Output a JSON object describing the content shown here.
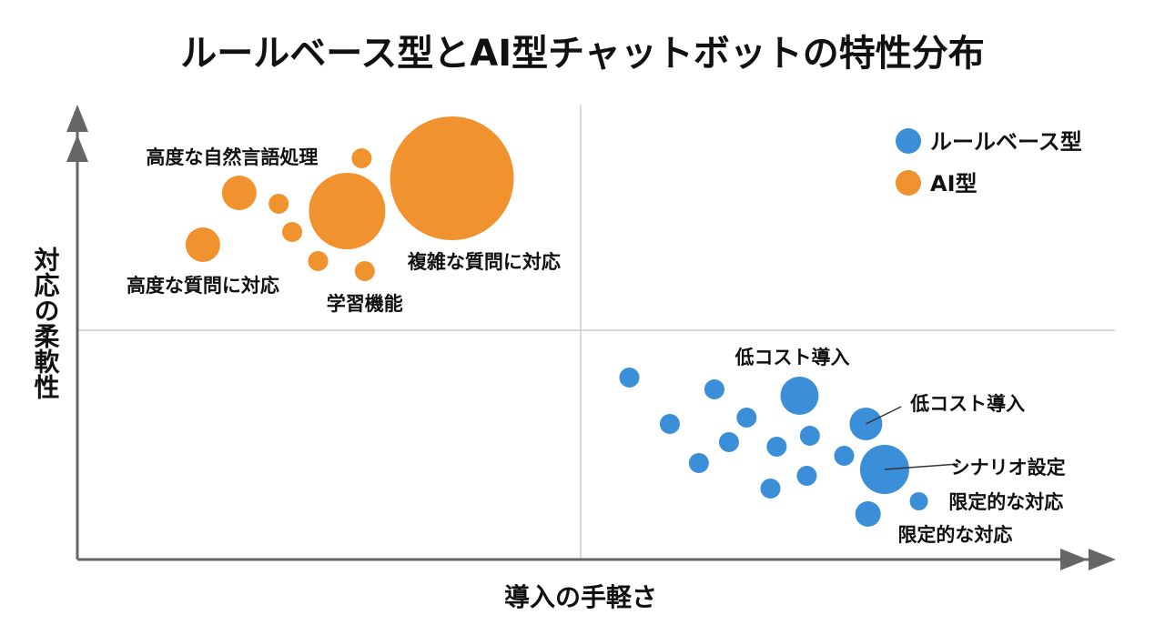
{
  "chart_data": {
    "type": "scatter",
    "subtype": "bubble",
    "title": "ルールベース型とAI型チャットボットの特性分布",
    "xlabel": "導入の手軽さ",
    "ylabel": "対応の柔軟性",
    "xlim": [
      0,
      100
    ],
    "ylim": [
      0,
      100
    ],
    "quadrant_dividers": {
      "x": 48.5,
      "y": 50.4
    },
    "grid": false,
    "legend_position": "top-right",
    "colors": {
      "rule": "#3b8ed8",
      "ai": "#f0922e",
      "axis": "#666666",
      "divider": "#cccccc"
    },
    "series": [
      {
        "name": "ルールベース型",
        "color": "#3b8ed8",
        "points": [
          {
            "x": 53.2,
            "y": 40.0,
            "size": 1.1
          },
          {
            "x": 61.4,
            "y": 37.4,
            "size": 1.1
          },
          {
            "x": 69.6,
            "y": 36.0,
            "size": 2.1
          },
          {
            "x": 57.1,
            "y": 29.8,
            "size": 1.1
          },
          {
            "x": 64.5,
            "y": 31.2,
            "size": 1.1
          },
          {
            "x": 76.0,
            "y": 29.8,
            "size": 1.8
          },
          {
            "x": 62.8,
            "y": 25.8,
            "size": 1.1
          },
          {
            "x": 67.4,
            "y": 24.8,
            "size": 1.1
          },
          {
            "x": 70.6,
            "y": 27.2,
            "size": 1.1
          },
          {
            "x": 59.9,
            "y": 21.2,
            "size": 1.1
          },
          {
            "x": 73.9,
            "y": 22.8,
            "size": 1.1
          },
          {
            "x": 77.8,
            "y": 19.8,
            "size": 2.7
          },
          {
            "x": 70.3,
            "y": 18.4,
            "size": 1.1
          },
          {
            "x": 66.8,
            "y": 15.6,
            "size": 1.1
          },
          {
            "x": 81.1,
            "y": 12.8,
            "size": 1.0
          },
          {
            "x": 76.2,
            "y": 10.0,
            "size": 1.4
          }
        ]
      },
      {
        "name": "AI型",
        "color": "#f0922e",
        "points": [
          {
            "x": 36.1,
            "y": 83.8,
            "size": 6.8
          },
          {
            "x": 26.0,
            "y": 76.6,
            "size": 4.2
          },
          {
            "x": 15.6,
            "y": 80.6,
            "size": 1.9
          },
          {
            "x": 19.4,
            "y": 78.2,
            "size": 1.1
          },
          {
            "x": 20.7,
            "y": 72.0,
            "size": 1.1
          },
          {
            "x": 12.1,
            "y": 69.2,
            "size": 1.9
          },
          {
            "x": 23.2,
            "y": 65.6,
            "size": 1.1
          },
          {
            "x": 27.7,
            "y": 63.4,
            "size": 1.1
          },
          {
            "x": 27.4,
            "y": 88.2,
            "size": 1.1
          }
        ]
      }
    ],
    "annotations": [
      {
        "text": "高度な自然言語処理",
        "x": 14.9,
        "y": 88.6
      },
      {
        "text": "高度な質問に対応",
        "x": 12.1,
        "y": 60.4
      },
      {
        "text": "学習機能",
        "x": 27.7,
        "y": 56.4
      },
      {
        "text": "複雑な質問に対応",
        "x": 39.2,
        "y": 65.6
      },
      {
        "text": "低コスト導入",
        "x": 68.9,
        "y": 44.6
      },
      {
        "text": "低コスト導入",
        "x": 85.8,
        "y": 34.4,
        "leader_from": {
          "x": 76.0,
          "y": 29.8
        },
        "leader_to": {
          "x": 79.4,
          "y": 33.6
        }
      },
      {
        "text": "シナリオ設定",
        "x": 89.7,
        "y": 20.4,
        "leader_from": {
          "x": 77.8,
          "y": 19.8
        },
        "leader_to": {
          "x": 84.9,
          "y": 21.0
        }
      },
      {
        "text": "限定的な対応",
        "x": 89.5,
        "y": 12.8
      },
      {
        "text": "限定的な対応",
        "x": 84.6,
        "y": 5.6
      }
    ]
  }
}
